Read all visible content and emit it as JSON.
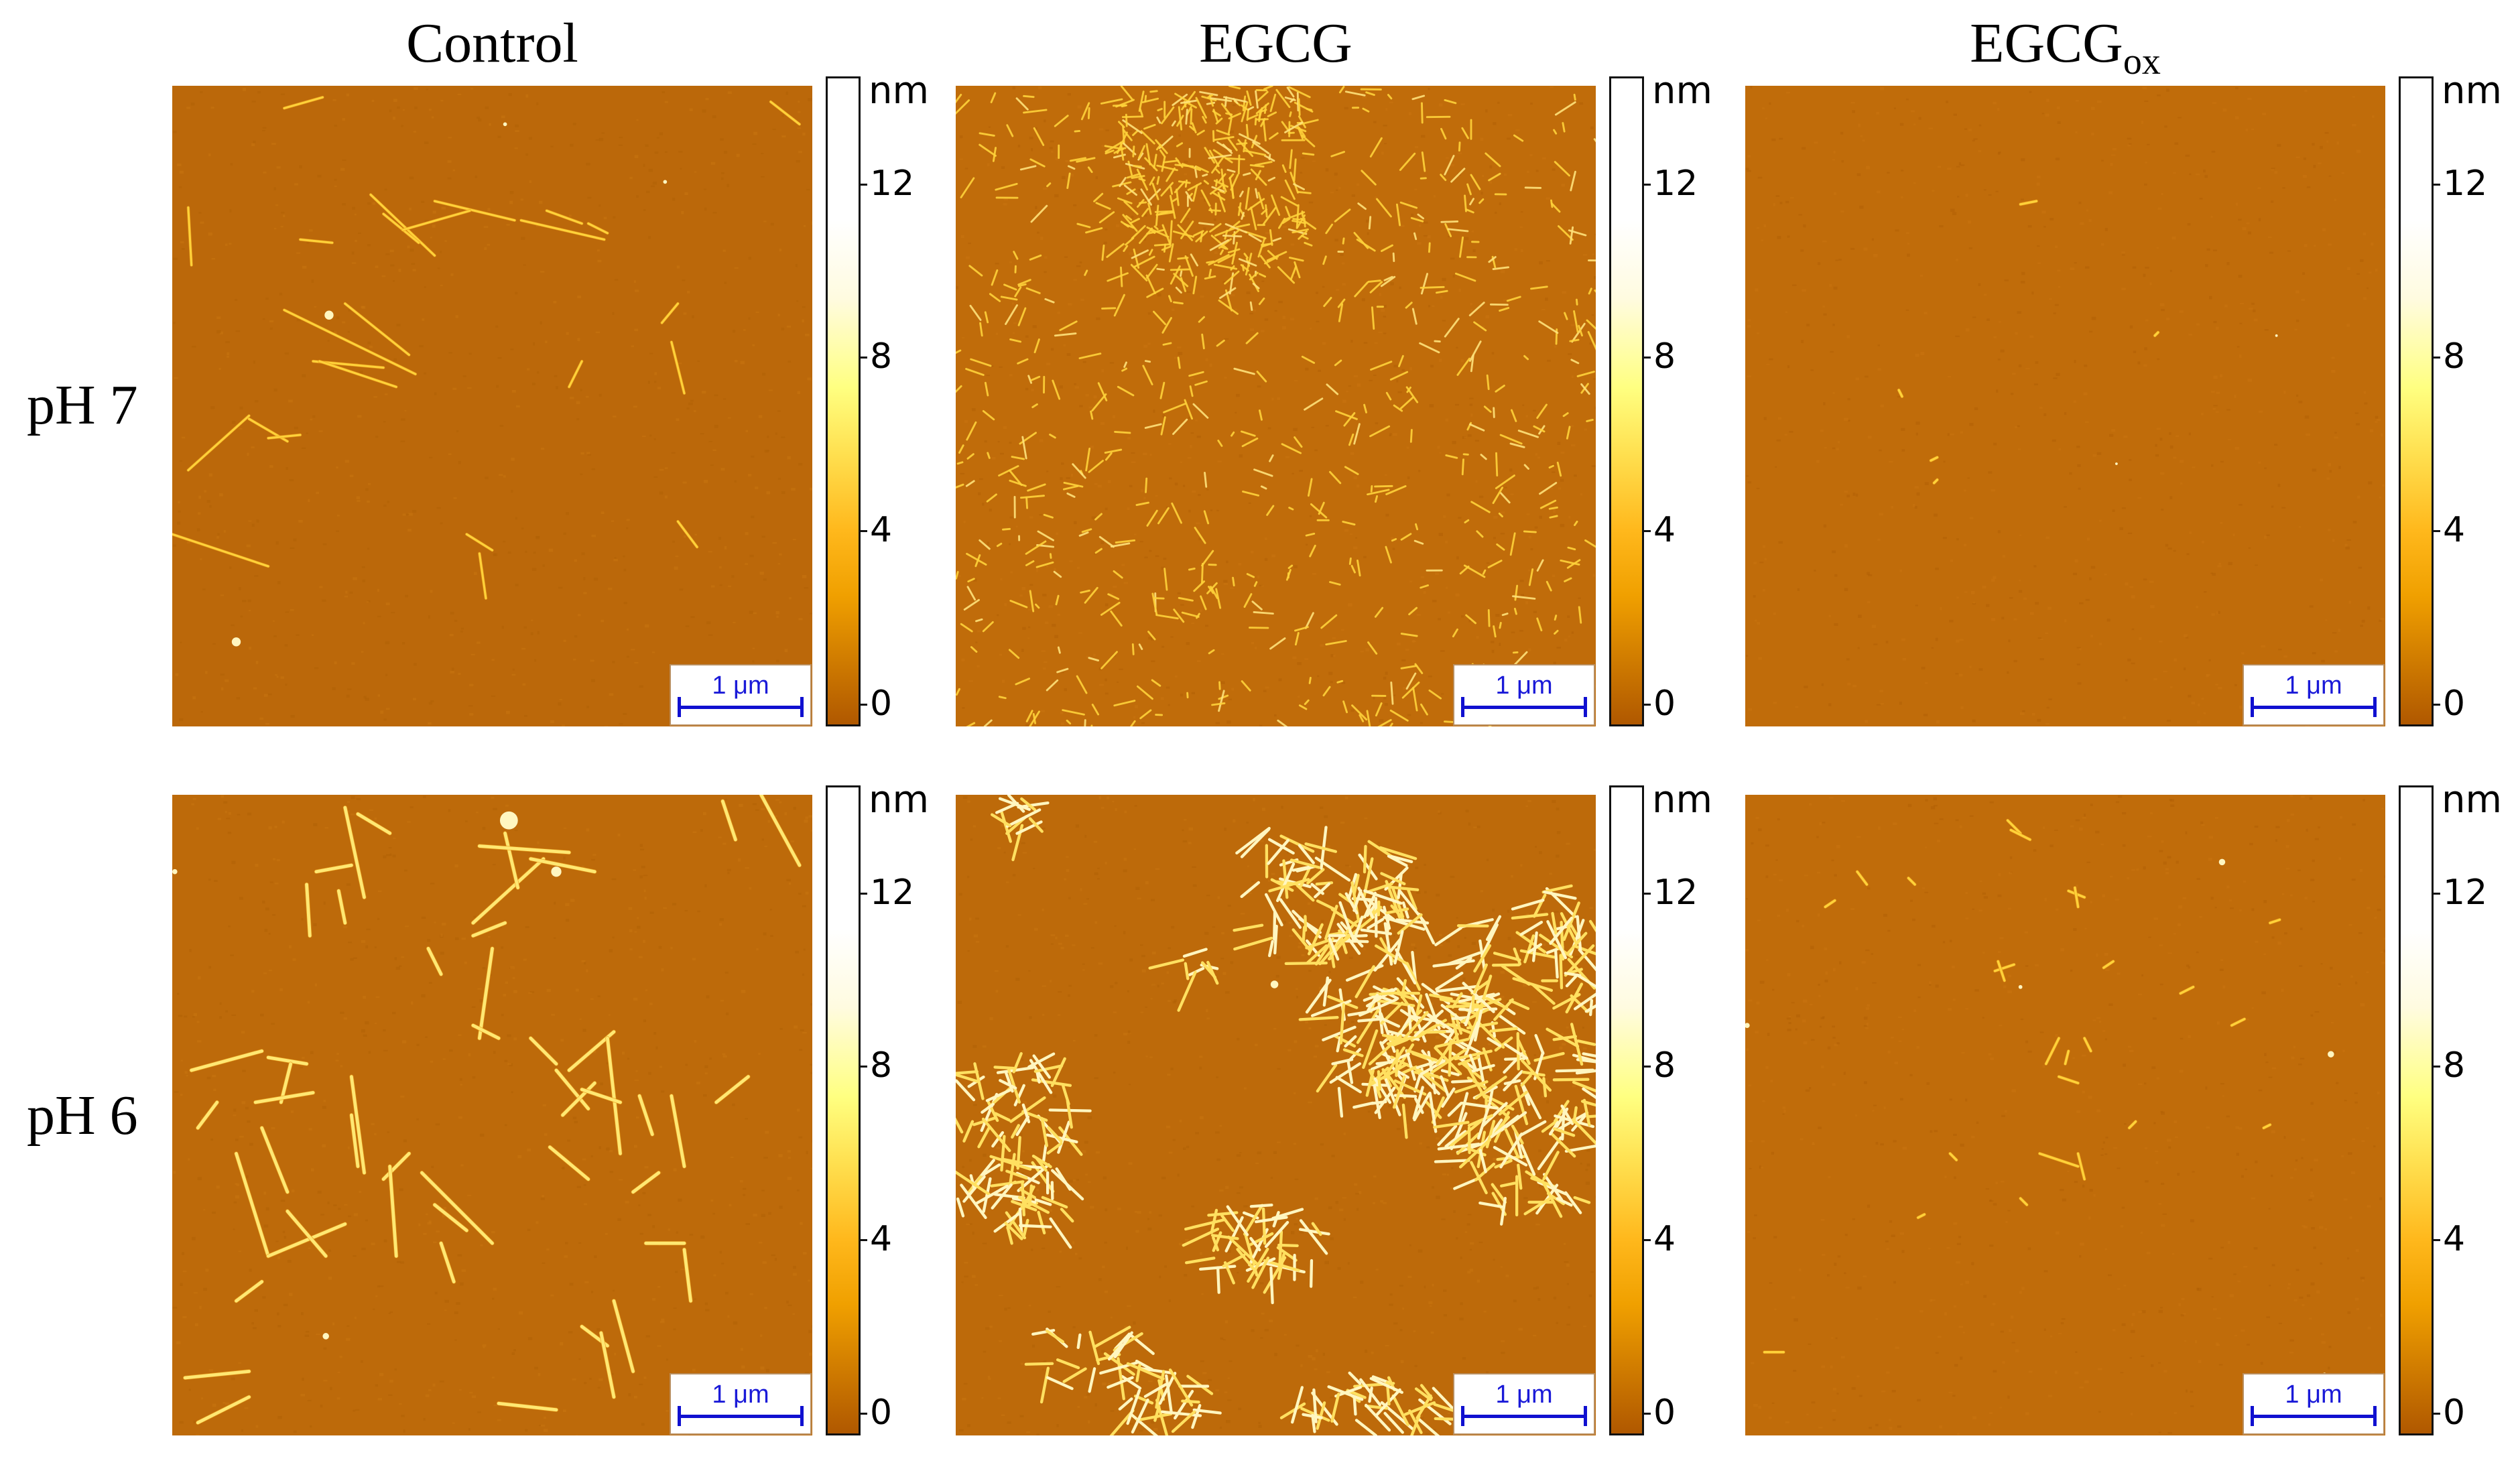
{
  "figure": {
    "columns": [
      {
        "label": "Control",
        "sub": ""
      },
      {
        "label": "EGCG",
        "sub": ""
      },
      {
        "label": "EGCG",
        "sub": "ox"
      }
    ],
    "rows": [
      {
        "label": "pH 7"
      },
      {
        "label": "pH 6"
      }
    ],
    "colorbar": {
      "unit": "nm",
      "ticks": [
        "12",
        "8",
        "4",
        "0"
      ],
      "range": [
        0,
        14.5
      ],
      "colors": [
        "#b05800",
        "#f0a000",
        "#ffe050",
        "#ffff80",
        "#ffffff"
      ]
    },
    "scale_bar_label": "1 μm",
    "colors": {
      "substrate": "#bd6a0a",
      "fibril": "#ffd23a",
      "fibril_bright": "#fff6c0",
      "scale_bar": "#1a1ad8"
    }
  },
  "panels": [
    {
      "id": "control-ph7",
      "row": 0,
      "col": 0,
      "bg": "#bb680a",
      "fibrils": [
        [
          175,
          35,
          235,
          18
        ],
        [
          935,
          25,
          980,
          60
        ],
        [
          310,
          170,
          410,
          265
        ],
        [
          330,
          200,
          385,
          245
        ],
        [
          410,
          180,
          535,
          210
        ],
        [
          465,
          195,
          360,
          225
        ],
        [
          545,
          210,
          675,
          240
        ],
        [
          585,
          195,
          640,
          215
        ],
        [
          650,
          215,
          680,
          230
        ],
        [
          270,
          340,
          370,
          420
        ],
        [
          175,
          350,
          380,
          450
        ],
        [
          120,
          515,
          25,
          600
        ],
        [
          120,
          520,
          180,
          555
        ],
        [
          150,
          550,
          200,
          545
        ],
        [
          0,
          700,
          150,
          750
        ],
        [
          780,
          400,
          800,
          480
        ],
        [
          765,
          370,
          790,
          340
        ],
        [
          460,
          700,
          500,
          725
        ],
        [
          480,
          730,
          490,
          800
        ],
        [
          790,
          680,
          820,
          720
        ],
        [
          620,
          470,
          640,
          430
        ],
        [
          200,
          240,
          250,
          245
        ],
        [
          25,
          190,
          30,
          280
        ],
        [
          220,
          430,
          330,
          440
        ],
        [
          230,
          430,
          350,
          470
        ]
      ],
      "dots": [
        [
          245,
          358,
          7
        ],
        [
          100,
          868,
          7
        ],
        [
          770,
          150,
          3
        ],
        [
          520,
          60,
          3
        ]
      ],
      "style": "thin"
    },
    {
      "id": "egcg-ph7",
      "row": 0,
      "col": 1,
      "bg": "#c06c0a",
      "fibrils": [],
      "style": "dense-short",
      "seed": 17,
      "count": 900
    },
    {
      "id": "egcgox-ph7",
      "row": 0,
      "col": 2,
      "bg": "#c06c0a",
      "fibrils": [
        [
          430,
          185,
          455,
          180
        ],
        [
          240,
          475,
          245,
          485
        ],
        [
          300,
          580,
          290,
          585
        ],
        [
          640,
          390,
          645,
          385
        ],
        [
          300,
          615,
          295,
          620
        ]
      ],
      "dots": [
        [
          830,
          390,
          2
        ],
        [
          580,
          590,
          2
        ]
      ],
      "style": "sparse"
    },
    {
      "id": "control-ph6",
      "row": 1,
      "col": 0,
      "bg": "#bd6a0a",
      "fibrils": [
        [
          270,
          20,
          300,
          160
        ],
        [
          290,
          30,
          340,
          60
        ],
        [
          225,
          120,
          280,
          110
        ],
        [
          210,
          140,
          215,
          220
        ],
        [
          260,
          150,
          270,
          200
        ],
        [
          470,
          200,
          580,
          100
        ],
        [
          520,
          60,
          540,
          145
        ],
        [
          480,
          80,
          620,
          90
        ],
        [
          560,
          100,
          660,
          120
        ],
        [
          470,
          220,
          520,
          200
        ],
        [
          500,
          240,
          480,
          380
        ],
        [
          400,
          240,
          420,
          280
        ],
        [
          470,
          360,
          510,
          380
        ],
        [
          30,
          430,
          140,
          400
        ],
        [
          150,
          410,
          210,
          420
        ],
        [
          170,
          480,
          185,
          420
        ],
        [
          130,
          480,
          220,
          465
        ],
        [
          280,
          440,
          300,
          590
        ],
        [
          280,
          500,
          290,
          580
        ],
        [
          40,
          520,
          70,
          480
        ],
        [
          100,
          560,
          150,
          720
        ],
        [
          140,
          520,
          180,
          620
        ],
        [
          150,
          720,
          270,
          670
        ],
        [
          180,
          650,
          240,
          720
        ],
        [
          330,
          600,
          370,
          560
        ],
        [
          340,
          580,
          350,
          720
        ],
        [
          410,
          640,
          460,
          680
        ],
        [
          420,
          700,
          440,
          760
        ],
        [
          390,
          590,
          500,
          700
        ],
        [
          560,
          380,
          600,
          420
        ],
        [
          600,
          430,
          650,
          490
        ],
        [
          590,
          550,
          650,
          600
        ],
        [
          610,
          500,
          660,
          450
        ],
        [
          620,
          430,
          690,
          370
        ],
        [
          680,
          380,
          700,
          560
        ],
        [
          640,
          460,
          700,
          480
        ],
        [
          730,
          470,
          750,
          530
        ],
        [
          720,
          620,
          760,
          590
        ],
        [
          780,
          470,
          800,
          580
        ],
        [
          850,
          480,
          900,
          440
        ],
        [
          920,
          0,
          980,
          110
        ],
        [
          860,
          10,
          880,
          70
        ],
        [
          640,
          830,
          680,
          860
        ],
        [
          670,
          840,
          690,
          940
        ],
        [
          690,
          790,
          720,
          900
        ],
        [
          20,
          910,
          120,
          900
        ],
        [
          40,
          980,
          120,
          940
        ],
        [
          100,
          790,
          140,
          760
        ],
        [
          740,
          700,
          800,
          700
        ],
        [
          800,
          710,
          810,
          790
        ],
        [
          510,
          950,
          600,
          960
        ]
      ],
      "dots": [
        [
          526,
          40,
          14
        ],
        [
          600,
          120,
          8
        ],
        [
          240,
          845,
          5
        ],
        [
          4,
          120,
          4
        ]
      ],
      "style": "thick"
    },
    {
      "id": "egcg-ph6",
      "row": 1,
      "col": 1,
      "bg": "#bd6a0a",
      "fibrils": [],
      "style": "clusters",
      "seed": 5,
      "clusters": [
        [
          590,
          140,
          120,
          90,
          70
        ],
        [
          650,
          220,
          80,
          100,
          60
        ],
        [
          690,
          380,
          100,
          80,
          80
        ],
        [
          770,
          400,
          120,
          90,
          80
        ],
        [
          900,
          370,
          120,
          180,
          120
        ],
        [
          880,
          560,
          90,
          80,
          50
        ],
        [
          80,
          520,
          100,
          120,
          70
        ],
        [
          110,
          620,
          60,
          60,
          30
        ],
        [
          480,
          690,
          80,
          50,
          45
        ],
        [
          220,
          870,
          80,
          40,
          25
        ],
        [
          330,
          930,
          60,
          40,
          25
        ],
        [
          640,
          940,
          110,
          40,
          40
        ],
        [
          95,
          25,
          50,
          30,
          12
        ],
        [
          380,
          260,
          30,
          20,
          8
        ],
        [
          940,
          180,
          50,
          40,
          15
        ]
      ],
      "dots": [
        [
          498,
          296,
          6
        ]
      ]
    },
    {
      "id": "egcgox-ph6",
      "row": 1,
      "col": 2,
      "bg": "#c06c0a",
      "fibrils": [
        [
          410,
          40,
          430,
          60
        ],
        [
          415,
          55,
          445,
          70
        ],
        [
          255,
          130,
          265,
          140
        ],
        [
          505,
          150,
          530,
          160
        ],
        [
          515,
          145,
          520,
          175
        ],
        [
          175,
          120,
          190,
          140
        ],
        [
          125,
          175,
          140,
          165
        ],
        [
          390,
          275,
          420,
          265
        ],
        [
          395,
          260,
          405,
          290
        ],
        [
          560,
          270,
          575,
          260
        ],
        [
          470,
          420,
          490,
          380
        ],
        [
          490,
          440,
          520,
          450
        ],
        [
          500,
          420,
          505,
          400
        ],
        [
          530,
          380,
          540,
          400
        ],
        [
          460,
          560,
          520,
          580
        ],
        [
          520,
          560,
          530,
          600
        ],
        [
          320,
          560,
          330,
          570
        ],
        [
          270,
          660,
          280,
          655
        ],
        [
          600,
          520,
          610,
          510
        ],
        [
          760,
          360,
          780,
          350
        ],
        [
          820,
          200,
          835,
          195
        ],
        [
          810,
          520,
          820,
          515
        ],
        [
          30,
          870,
          60,
          870
        ],
        [
          430,
          630,
          440,
          640
        ],
        [
          680,
          310,
          700,
          300
        ]
      ],
      "dots": [
        [
          745,
          105,
          5
        ],
        [
          3,
          360,
          4
        ],
        [
          915,
          405,
          5
        ],
        [
          905,
          905,
          3
        ],
        [
          430,
          300,
          3
        ]
      ],
      "style": "small"
    }
  ]
}
